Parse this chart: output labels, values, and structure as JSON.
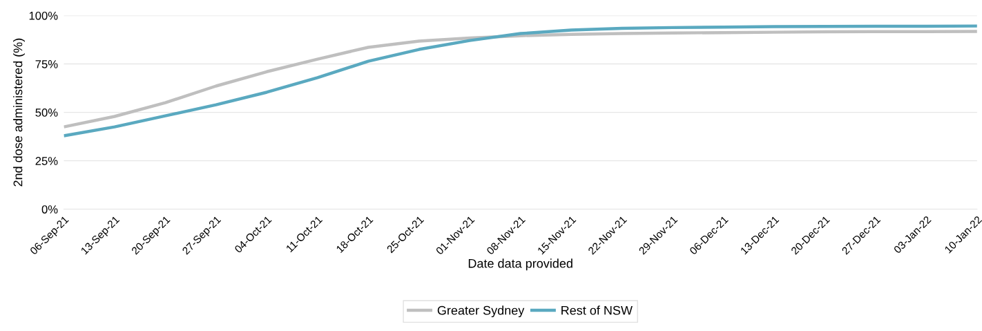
{
  "chart_data": {
    "type": "line",
    "xlabel": "Date data provided",
    "ylabel": "2nd dose administered (%)",
    "categories": [
      "06-Sep-21",
      "13-Sep-21",
      "20-Sep-21",
      "27-Sep-21",
      "04-Oct-21",
      "11-Oct-21",
      "18-Oct-21",
      "25-Oct-21",
      "01-Nov-21",
      "08-Nov-21",
      "15-Nov-21",
      "22-Nov-21",
      "29-Nov-21",
      "06-Dec-21",
      "13-Dec-21",
      "20-Dec-21",
      "27-Dec-21",
      "03-Jan-22",
      "10-Jan-22"
    ],
    "series": [
      {
        "name": "Greater Sydney",
        "color": "#bfbfbf",
        "values": [
          42.5,
          47.9,
          55,
          63.6,
          71,
          77.5,
          83.6,
          86.8,
          88.4,
          89.6,
          90.3,
          90.7,
          91,
          91.2,
          91.4,
          91.6,
          91.7,
          91.7,
          91.8
        ]
      },
      {
        "name": "Rest of NSW",
        "color": "#5aa9c0",
        "values": [
          37.9,
          42.5,
          48.2,
          53.9,
          60.4,
          67.9,
          76.4,
          82.5,
          87.1,
          90.7,
          92.5,
          93.4,
          93.8,
          94,
          94.3,
          94.4,
          94.5,
          94.5,
          94.6
        ]
      }
    ],
    "ylim": [
      0,
      100
    ],
    "yticks": [
      {
        "value": 0,
        "label": "0%"
      },
      {
        "value": 25,
        "label": "25%"
      },
      {
        "value": 50,
        "label": "50%"
      },
      {
        "value": 75,
        "label": "75%"
      },
      {
        "value": 100,
        "label": "100%"
      }
    ],
    "grid": "y",
    "legend": "bottom",
    "marker": "none",
    "line_style": "solid"
  }
}
